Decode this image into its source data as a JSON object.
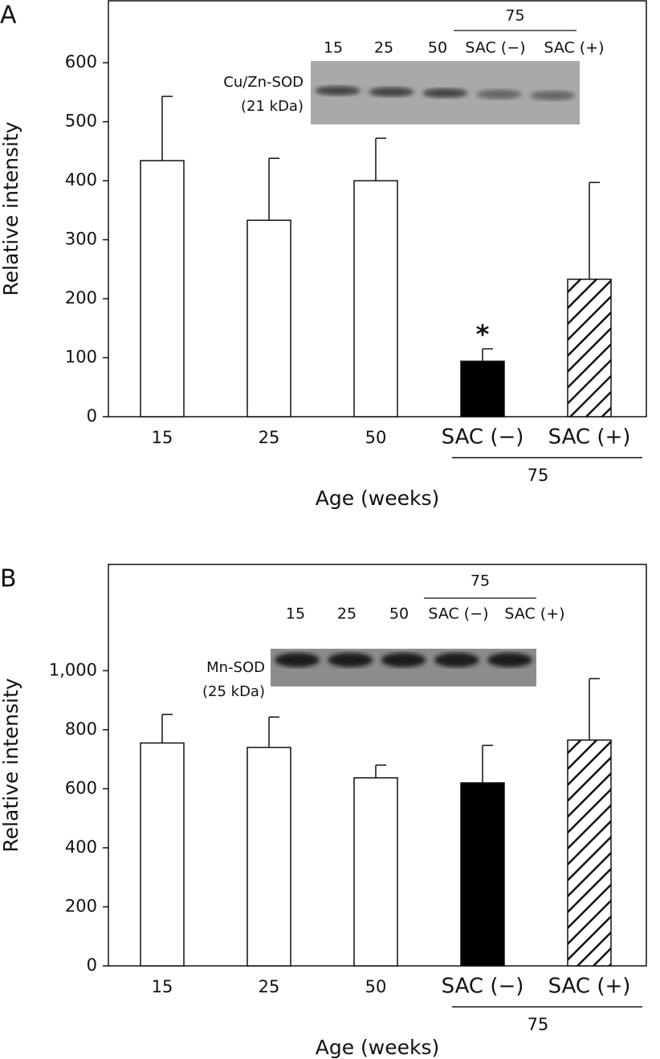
{
  "chart_data": [
    {
      "type": "bar",
      "panel_label": "A",
      "y_label": "Relative intensity",
      "x_label": "Age (weeks)",
      "categories": [
        "15",
        "25",
        "50",
        "SAC (−)",
        "SAC (+)"
      ],
      "group_label": "75",
      "values": [
        434,
        333,
        400,
        94,
        233
      ],
      "errors": [
        109,
        105,
        72,
        21,
        164
      ],
      "fills": [
        "white",
        "white",
        "white",
        "black",
        "hatched"
      ],
      "ylim": [
        0,
        705
      ],
      "yticks": [
        0,
        100,
        200,
        300,
        400,
        500,
        600
      ],
      "annotation": "*",
      "inset": {
        "protein": "Cu/Zn-SOD",
        "size": "(21 kDa)",
        "lanes": [
          "15",
          "25",
          "50",
          "SAC (−)",
          "SAC (+)"
        ],
        "group_label": "75"
      }
    },
    {
      "type": "bar",
      "panel_label": "B",
      "y_label": "Relative intensity",
      "x_label": "Age (weeks)",
      "categories": [
        "15",
        "25",
        "50",
        "SAC (−)",
        "SAC (+)"
      ],
      "group_label": "75",
      "values": [
        755,
        740,
        637,
        620,
        765
      ],
      "errors": [
        97,
        103,
        43,
        127,
        208
      ],
      "fills": [
        "white",
        "white",
        "white",
        "black",
        "hatched"
      ],
      "ylim": [
        0,
        1360
      ],
      "yticks": [
        0,
        200,
        400,
        600,
        800,
        {
          "value": 1000,
          "label": "1,000"
        }
      ],
      "inset": {
        "protein": "Mn-SOD",
        "size": "(25 kDa)",
        "lanes": [
          "15",
          "25",
          "50",
          "SAC (−)",
          "SAC (+)"
        ],
        "group_label": "75"
      }
    }
  ]
}
